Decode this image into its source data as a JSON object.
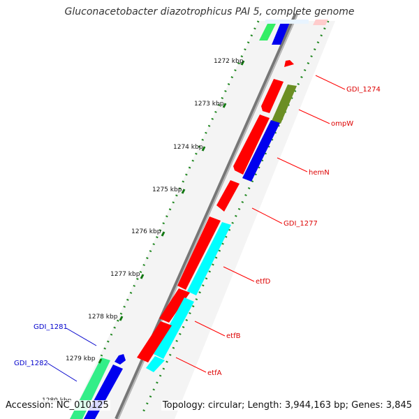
{
  "title": "Gluconacetobacter diazotrophicus PAI 5, complete genome",
  "accession": "Accession: NC_010125",
  "topology": "Topology: circular; Length: 3,944,163 bp; Genes: 3,845",
  "ticks": [
    {
      "label": "1272 kbp"
    },
    {
      "label": "1273 kbp"
    },
    {
      "label": "1274 kbp"
    },
    {
      "label": "1275 kbp"
    },
    {
      "label": "1276 kbp"
    },
    {
      "label": "1277 kbp"
    },
    {
      "label": "1278 kbp"
    },
    {
      "label": "1279 kbp"
    },
    {
      "label": "1280 kbp"
    }
  ],
  "gene_labels": [
    {
      "name": "GDI_1274",
      "color": "#dd0000"
    },
    {
      "name": "ompW",
      "color": "#dd0000"
    },
    {
      "name": "hemN",
      "color": "#dd0000"
    },
    {
      "name": "GDI_1277",
      "color": "#dd0000"
    },
    {
      "name": "etfD",
      "color": "#dd0000"
    },
    {
      "name": "etfB",
      "color": "#dd0000"
    },
    {
      "name": "etfA",
      "color": "#dd0000"
    },
    {
      "name": "GDI_1281",
      "color": "#0000cc"
    },
    {
      "name": "GDI_1282",
      "color": "#0000cc"
    }
  ],
  "colors": {
    "cds_red": "#ff0000",
    "blue": "#0000ee",
    "cyan": "#00ffff",
    "olive": "#6b8e23",
    "green_light": "#33ee88",
    "tick_green": "#007700",
    "backbone": "#888888"
  }
}
